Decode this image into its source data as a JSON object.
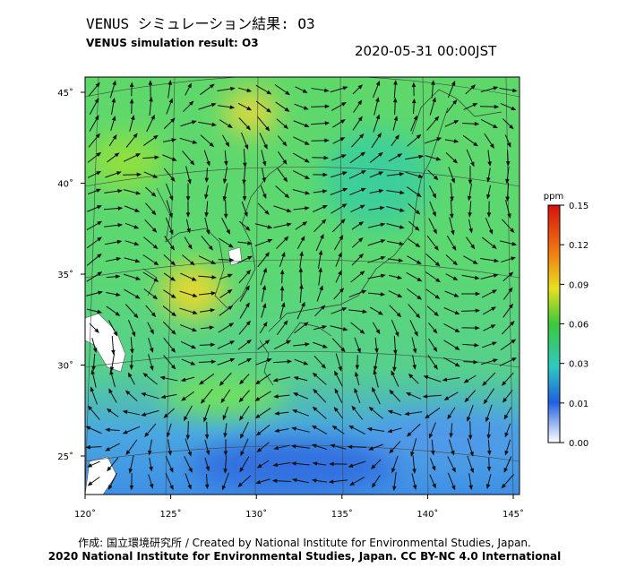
{
  "header": {
    "title": "VENUS シミュレーション結果: O3",
    "subtitle": "VENUS simulation result: O3",
    "timestamp": "2020-05-31 00:00JST"
  },
  "map": {
    "lon_ticks": [
      {
        "value": 120,
        "label": "120˚"
      },
      {
        "value": 125,
        "label": "125˚"
      },
      {
        "value": 130,
        "label": "130˚"
      },
      {
        "value": 135,
        "label": "135˚"
      },
      {
        "value": 140,
        "label": "140˚"
      },
      {
        "value": 145,
        "label": "145˚"
      }
    ],
    "lat_ticks": [
      {
        "value": 45,
        "label": "45˚"
      },
      {
        "value": 40,
        "label": "40˚"
      },
      {
        "value": 35,
        "label": "35˚"
      },
      {
        "value": 30,
        "label": "30˚"
      },
      {
        "value": 25,
        "label": "25˚"
      }
    ]
  },
  "colorbar": {
    "unit": "ppm",
    "ticks": [
      0.15,
      0.12,
      0.09,
      0.06,
      0.03,
      0.01,
      {
        "value": 0,
        "label": "0.00"
      }
    ]
  },
  "footer": {
    "line1": "作成: 国立環境研究所 / Created by National Institute for Environmental Studies, Japan.",
    "line2": "2020 National Institute for Environmental Studies, Japan. CC BY-NC 4.0 International"
  }
}
